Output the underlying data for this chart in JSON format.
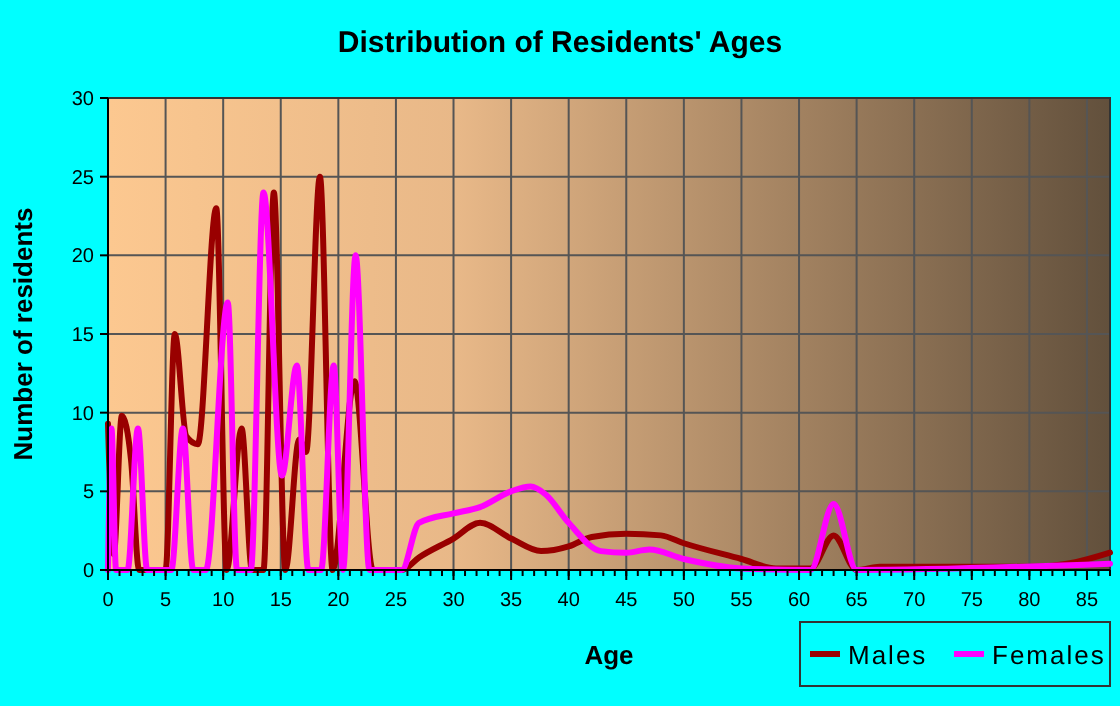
{
  "chart_data": {
    "type": "line",
    "title": "Distribution of Residents' Ages",
    "xlabel": "Age",
    "ylabel": "Number of residents",
    "xlim": [
      0,
      87
    ],
    "xticks": [
      0,
      5,
      10,
      15,
      20,
      25,
      30,
      35,
      40,
      45,
      50,
      55,
      60,
      65,
      70,
      75,
      80,
      85
    ],
    "ylim": [
      0,
      30
    ],
    "yticks": [
      0,
      5,
      10,
      15,
      20,
      25,
      30
    ],
    "grid": true,
    "legend": "bottom right",
    "marker": "none",
    "line_style": "solid",
    "series": [
      {
        "name": "Males",
        "color": "#990000",
        "x": [
          0,
          0.5,
          1.2,
          2,
          2.7,
          5,
          5.8,
          6.8,
          7.8,
          9.4,
          10.3,
          11.6,
          12.5,
          13.5,
          14.4,
          15.4,
          16.6,
          17.2,
          18.4,
          19.5,
          21.4,
          23,
          25.5,
          27,
          30,
          32.3,
          35,
          37.6,
          40,
          42,
          45,
          48,
          50,
          55,
          58,
          61,
          63,
          65,
          67,
          80,
          84,
          87
        ],
        "values": [
          9.3,
          1,
          9.8,
          7,
          0,
          0,
          15,
          8.5,
          8,
          23,
          0,
          9,
          0,
          0,
          24,
          0,
          8.3,
          7.5,
          25,
          0,
          12,
          0,
          0,
          0.8,
          2,
          3,
          2,
          1.2,
          1.5,
          2.1,
          2.3,
          2.2,
          1.7,
          0.7,
          0.1,
          0.1,
          2.2,
          0,
          0.2,
          0.2,
          0.5,
          1.1
        ]
      },
      {
        "name": "Females",
        "color": "#ff00ff",
        "x": [
          0,
          0.3,
          0.7,
          1.7,
          2.6,
          3.4,
          5.5,
          6.5,
          7.4,
          8.5,
          10.4,
          11.2,
          12.4,
          13.5,
          15.1,
          16.4,
          17.4,
          18.5,
          19.6,
          20.4,
          21.5,
          22.7,
          25.5,
          27,
          30,
          32.3,
          35,
          36.7,
          38,
          40,
          42.8,
          45,
          47,
          50,
          55,
          61,
          63,
          65,
          87
        ],
        "values": [
          0,
          9,
          0,
          0,
          9,
          0,
          0,
          9,
          0,
          0,
          17,
          0,
          0,
          24,
          6,
          13,
          0,
          0,
          13,
          0,
          20,
          0,
          0,
          3,
          3.6,
          4,
          5,
          5.3,
          4.8,
          3,
          1.2,
          1.1,
          1.3,
          0.7,
          0.1,
          0,
          4.2,
          0,
          0.4
        ]
      }
    ]
  }
}
